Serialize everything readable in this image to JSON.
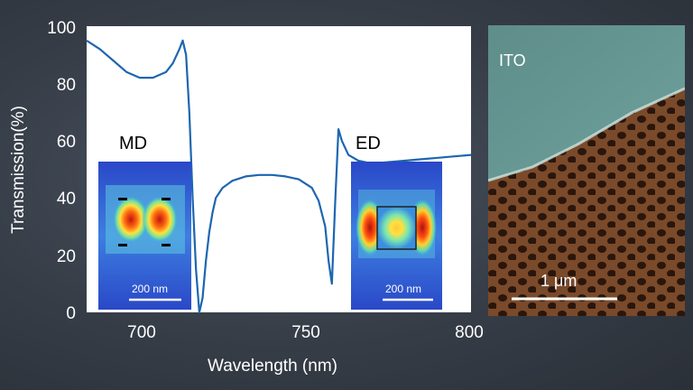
{
  "chart_data": {
    "type": "line",
    "xlabel": "Wavelength (nm)",
    "ylabel": "Transmission(%)",
    "xlim": [
      684,
      800
    ],
    "ylim": [
      0,
      100
    ],
    "x_ticks": [
      "700",
      "750",
      "800"
    ],
    "y_ticks": [
      "0",
      "20",
      "40",
      "60",
      "80",
      "100"
    ],
    "grid": false,
    "series": [
      {
        "color": "#1d66b0",
        "x": [
          684,
          688,
          692,
          696,
          700,
          704,
          708,
          710,
          712,
          713,
          714,
          715,
          716,
          717,
          718,
          719,
          720,
          721,
          722,
          723,
          725,
          728,
          732,
          736,
          740,
          744,
          748,
          752,
          754,
          756,
          757,
          758,
          759,
          760,
          761,
          763,
          766,
          770,
          775,
          780,
          785,
          790,
          795,
          800
        ],
        "y": [
          95,
          92,
          88,
          84,
          82,
          82,
          84,
          87,
          92,
          95,
          90,
          70,
          40,
          15,
          0,
          5,
          18,
          28,
          35,
          40,
          43.5,
          46,
          47.5,
          48,
          48,
          47.5,
          46.5,
          43.5,
          39,
          30,
          18,
          10,
          38,
          64,
          60,
          55,
          53,
          52,
          52.5,
          53,
          53.5,
          54,
          54.5,
          55
        ]
      }
    ],
    "insets": [
      {
        "label": "MD",
        "scale_bar": "200 nm"
      },
      {
        "label": "ED",
        "scale_bar": "200 nm"
      }
    ]
  },
  "sem_image": {
    "label": "ITO",
    "scale_bar": "1 μm"
  },
  "colors": {
    "plot_background": "#ffffff",
    "curve": "#1d66b0",
    "field_map_low": "#2f4fc8",
    "field_map_high": "#e0201a",
    "sem_ito": "#5f8f8a",
    "sem_substrate": "#7a4a2a"
  }
}
